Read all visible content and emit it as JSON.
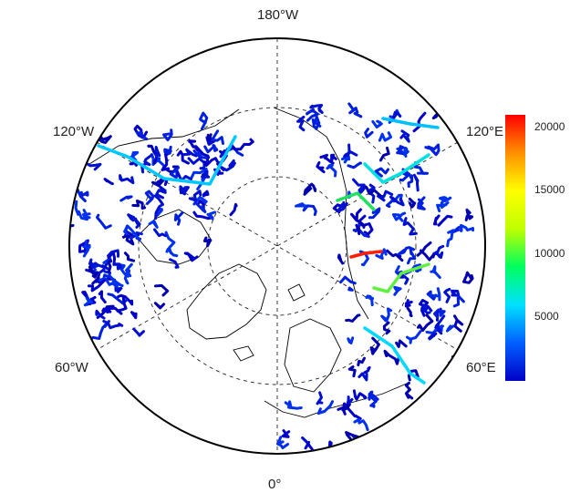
{
  "map": {
    "projection": "north-polar-stereographic",
    "longitude_labels": {
      "top": "180°W",
      "bottom": "0°",
      "upper_left": "120°W",
      "upper_right": "120°E",
      "lower_left": "60°W",
      "lower_right": "60°E"
    },
    "graticule": "dashed",
    "land_outline_color": "#000000",
    "river_palette_note": "rivers colored by value on rainbow scale"
  },
  "colorbar": {
    "ticks": [
      "20000",
      "15000",
      "10000",
      "5000"
    ],
    "tick_values": [
      20000,
      15000,
      10000,
      5000
    ],
    "min": 0,
    "max": 21000,
    "colors": [
      "#0000c8",
      "#0060ff",
      "#00e0ff",
      "#00ff60",
      "#c0ff00",
      "#ffff00",
      "#ff9000",
      "#ff0000"
    ]
  }
}
